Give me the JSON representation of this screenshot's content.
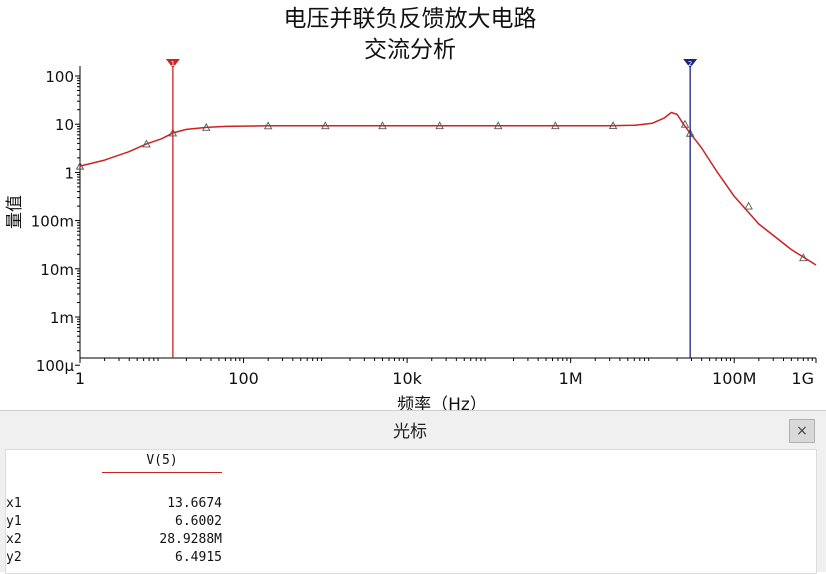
{
  "chart_data": {
    "type": "line",
    "title": "电压并联负反馈放大电路",
    "subtitle": "交流分析",
    "xlabel": "频率（Hz）",
    "ylabel": "量值",
    "x_scale": "log",
    "y_scale": "log",
    "xlim": [
      1,
      1000000000
    ],
    "ylim": [
      0.0001,
      150
    ],
    "x_ticks": [
      {
        "value": 1,
        "label": "1"
      },
      {
        "value": 100,
        "label": "100"
      },
      {
        "value": 10000,
        "label": "10k"
      },
      {
        "value": 1000000,
        "label": "1M"
      },
      {
        "value": 100000000,
        "label": "100M"
      },
      {
        "value": 1000000000,
        "label": "1G"
      }
    ],
    "y_ticks": [
      {
        "value": 100,
        "label": "100"
      },
      {
        "value": 10,
        "label": "10"
      },
      {
        "value": 1,
        "label": "1"
      },
      {
        "value": 0.1,
        "label": "100m"
      },
      {
        "value": 0.01,
        "label": "10m"
      },
      {
        "value": 0.001,
        "label": "1m"
      },
      {
        "value": 0.0001,
        "label": "100µ"
      }
    ],
    "grid": false,
    "series": [
      {
        "color": "#cc2222",
        "x": [
          1,
          2,
          4,
          6.5,
          10,
          13.6674,
          20,
          35,
          60,
          100,
          200,
          1000,
          10000,
          100000,
          1000000,
          3000000,
          6000000,
          10000000,
          14000000,
          17000000,
          20000000,
          24000000,
          28928800,
          40000000,
          60000000,
          100000000,
          200000000,
          500000000,
          1000000000
        ],
        "y": [
          1.35,
          1.8,
          2.7,
          3.9,
          5.0,
          6.6,
          7.8,
          8.6,
          9.0,
          9.15,
          9.25,
          9.3,
          9.3,
          9.3,
          9.3,
          9.3,
          9.5,
          10.5,
          13.5,
          17.5,
          16,
          10,
          6.49,
          3.2,
          1.1,
          0.32,
          0.085,
          0.025,
          0.012
        ]
      }
    ],
    "marker_points": [
      [
        1,
        1.35
      ],
      [
        6.5,
        3.9
      ],
      [
        13.6674,
        6.6
      ],
      [
        35,
        8.6
      ],
      [
        200,
        9.25
      ],
      [
        1000,
        9.3
      ],
      [
        5000,
        9.3
      ],
      [
        25000,
        9.3
      ],
      [
        130000,
        9.3
      ],
      [
        650000,
        9.3
      ],
      [
        3300000,
        9.35
      ],
      [
        25000000,
        10
      ],
      [
        28928800,
        6.49
      ],
      [
        150000000,
        0.2
      ],
      [
        700000000,
        0.017
      ]
    ],
    "cursors": [
      {
        "id": "1",
        "x": 13.6674,
        "color": "#cc2222"
      },
      {
        "id": "2",
        "x": 28928800,
        "color": "#1a237e"
      }
    ]
  },
  "cursor_panel": {
    "title": "光标",
    "close_label": "×",
    "column_header": "V(5)",
    "rows": [
      {
        "label": "x1",
        "value": "13.6674"
      },
      {
        "label": "y1",
        "value": "6.6002"
      },
      {
        "label": "x2",
        "value": "28.9288M"
      },
      {
        "label": "y2",
        "value": "6.4915"
      }
    ]
  }
}
